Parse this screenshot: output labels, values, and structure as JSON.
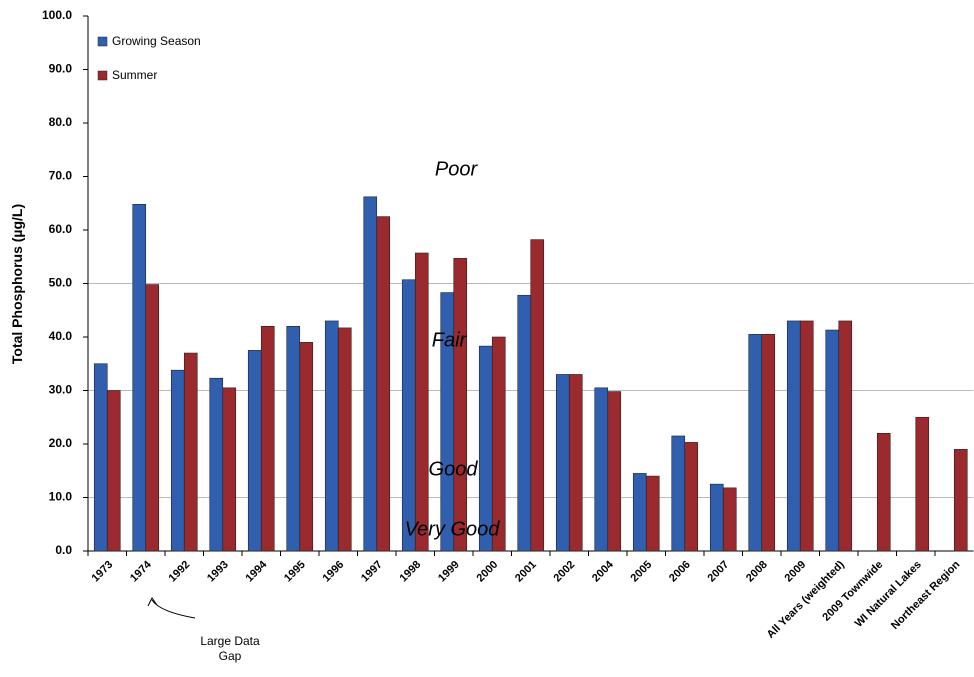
{
  "chart_data": {
    "type": "bar",
    "y_label": "Total Phosphorus (µg/L)",
    "categories": [
      "1973",
      "1974",
      "1992",
      "1993",
      "1994",
      "1995",
      "1996",
      "1997",
      "1998",
      "1999",
      "2000",
      "2001",
      "2002",
      "2004",
      "2005",
      "2006",
      "2007",
      "2008",
      "2009",
      "All Years (weighted)",
      "2009 Townwide",
      "WI Natural  Lakes",
      "Northeast Region"
    ],
    "series": [
      {
        "name": "Growing Season",
        "color": "#2f5fae",
        "values": [
          35,
          64.8,
          33.8,
          32.3,
          37.5,
          42,
          43,
          66.2,
          50.7,
          48.3,
          38.3,
          47.8,
          33,
          30.5,
          14.5,
          21.5,
          12.5,
          40.5,
          43,
          41.3,
          null,
          null,
          null
        ]
      },
      {
        "name": "Summer",
        "color": "#9b2a2e",
        "values": [
          30,
          49.8,
          37,
          30.5,
          42,
          39,
          41.7,
          62.5,
          55.7,
          54.7,
          40,
          58.2,
          33,
          29.8,
          14,
          20.3,
          11.8,
          40.5,
          43,
          43,
          22,
          25,
          19
        ]
      }
    ],
    "ylim": [
      0,
      100
    ],
    "yticks": [
      {
        "value": 0,
        "label": "0.0"
      },
      {
        "value": 10,
        "label": "10.0"
      },
      {
        "value": 20,
        "label": "20.0"
      },
      {
        "value": 30,
        "label": "30.0"
      },
      {
        "value": 40,
        "label": "40.0"
      },
      {
        "value": 50,
        "label": "50.0"
      },
      {
        "value": 60,
        "label": "60.0"
      },
      {
        "value": 70,
        "label": "70.0"
      },
      {
        "value": 80,
        "label": "80.0"
      },
      {
        "value": 90,
        "label": "90.0"
      },
      {
        "value": 100,
        "label": "100.0"
      }
    ],
    "reference_lines": [
      10,
      30,
      50
    ],
    "annotations": [
      "Poor",
      "Fair",
      "Good",
      "Very Good",
      "Large Data Gap"
    ],
    "legend_position": "upper left"
  }
}
